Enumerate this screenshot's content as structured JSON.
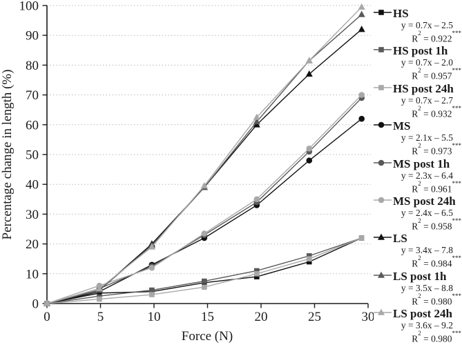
{
  "chart_data": {
    "type": "line",
    "title": "",
    "xlabel": "Force (N)",
    "ylabel": "Percentage change in length (%)",
    "xlim": [
      0,
      30
    ],
    "ylim": [
      0,
      100
    ],
    "x_ticks": [
      0,
      5,
      10,
      15,
      20,
      25,
      30
    ],
    "y_ticks": [
      0,
      10,
      20,
      30,
      40,
      50,
      60,
      70,
      80,
      90,
      100
    ],
    "grid": "horizontal dotted gridlines",
    "legend_position": "right",
    "axis_color": "#1a1a1a",
    "grid_color": "#b8b8b8",
    "x": [
      0,
      4.9,
      9.8,
      14.7,
      19.6,
      24.5,
      29.4
    ],
    "series": [
      {
        "name": "HS",
        "marker": "square",
        "color": "#111111",
        "values": [
          0,
          3.5,
          4,
          7,
          9,
          14,
          22
        ],
        "equation": "y = 0.7x – 2.5",
        "r2": "0.922",
        "stars": "***"
      },
      {
        "name": "HS post 1h",
        "marker": "square",
        "color": "#595959",
        "values": [
          0,
          2.5,
          4.5,
          7.5,
          11,
          16,
          22
        ],
        "equation": "y = 0.7x – 2.0",
        "r2": "0.957",
        "stars": "***"
      },
      {
        "name": "HS post 24h",
        "marker": "square",
        "color": "#a8a8a8",
        "values": [
          0,
          1.5,
          3,
          5.5,
          10,
          15,
          22
        ],
        "equation": "y = 0.7x – 2.7",
        "r2": "0.932",
        "stars": "***"
      },
      {
        "name": "MS",
        "marker": "circle",
        "color": "#111111",
        "values": [
          0,
          4,
          13,
          22,
          33,
          48,
          62
        ],
        "equation": "y = 2.1x – 5.5",
        "r2": "0.973",
        "stars": "***"
      },
      {
        "name": "MS post 1h",
        "marker": "circle",
        "color": "#595959",
        "values": [
          0,
          5,
          12.5,
          23,
          34,
          51,
          69
        ],
        "equation": "y = 2.3x – 6.4",
        "r2": "0.961",
        "stars": "***"
      },
      {
        "name": "MS post 24h",
        "marker": "circle",
        "color": "#a8a8a8",
        "values": [
          0,
          6,
          12,
          23.5,
          35,
          52,
          70
        ],
        "equation": "y = 2.4x – 6.5",
        "r2": "0.958",
        "stars": "***"
      },
      {
        "name": "LS",
        "marker": "triangle",
        "color": "#111111",
        "values": [
          0,
          4.5,
          20,
          39,
          60,
          77,
          92
        ],
        "equation": "y = 3.4x – 7.8",
        "r2": "0.984",
        "stars": "***"
      },
      {
        "name": "LS post 1h",
        "marker": "triangle",
        "color": "#595959",
        "values": [
          0,
          4.5,
          19.5,
          39,
          61,
          81.5,
          97
        ],
        "equation": "y = 3.5x – 8.8",
        "r2": "0.980",
        "stars": "***"
      },
      {
        "name": "LS post 24h",
        "marker": "triangle",
        "color": "#a8a8a8",
        "values": [
          0,
          5,
          19,
          39.5,
          62.5,
          81.5,
          99.5
        ],
        "equation": "y = 3.6x – 9.2",
        "r2": "0.980",
        "stars": "***"
      }
    ]
  },
  "legend_labels": {
    "r_label": "R",
    "r_sup": "2",
    "equals": " = "
  }
}
